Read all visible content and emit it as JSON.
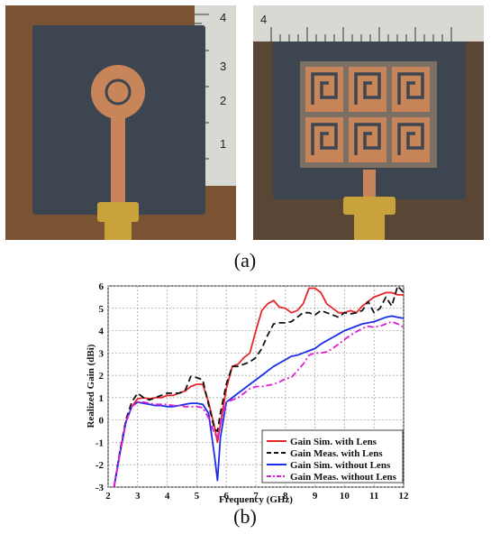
{
  "captions": {
    "a": "(a)",
    "b": "(b)"
  },
  "colors": {
    "board": "#3d4550",
    "copper": "#c8855a",
    "ruler": "#d9d9d4",
    "connector": "#c9a23c",
    "background_left": "#7a5234",
    "background_right": "#5a4635"
  },
  "ruler_labels": {
    "left": [
      "4",
      "3",
      "2",
      "1"
    ],
    "right": [
      "4"
    ]
  },
  "chart_data": {
    "type": "line",
    "xlabel": "Frequency (GHz)",
    "ylabel": "Realized Gain (dBi)",
    "xlim": [
      2,
      12
    ],
    "ylim": [
      -3,
      6
    ],
    "xticks": [
      2,
      3,
      4,
      5,
      6,
      7,
      8,
      9,
      10,
      11,
      12
    ],
    "yticks": [
      -3,
      -2,
      -1,
      0,
      1,
      2,
      3,
      4,
      5,
      6
    ],
    "grid": true,
    "legend_position": "bottom-right",
    "series": [
      {
        "name": "Gain Sim. with Lens",
        "color": "#e8262a",
        "dash": "solid",
        "x": [
          2.2,
          2.4,
          2.6,
          2.8,
          3.0,
          3.2,
          3.4,
          3.6,
          3.8,
          4.0,
          4.2,
          4.4,
          4.6,
          4.8,
          5.0,
          5.2,
          5.4,
          5.6,
          5.7,
          5.8,
          6.0,
          6.2,
          6.4,
          6.6,
          6.8,
          7.0,
          7.2,
          7.4,
          7.6,
          7.8,
          8.0,
          8.2,
          8.4,
          8.6,
          8.8,
          9.0,
          9.2,
          9.4,
          9.6,
          9.8,
          10.0,
          10.2,
          10.4,
          10.6,
          10.8,
          11.0,
          11.2,
          11.4,
          11.6,
          11.8,
          12.0
        ],
        "y": [
          -3.0,
          -1.5,
          -0.1,
          0.6,
          0.95,
          1.0,
          0.95,
          1.0,
          1.0,
          1.1,
          1.1,
          1.2,
          1.3,
          1.5,
          1.6,
          1.6,
          0.8,
          -0.3,
          -1.0,
          -0.2,
          1.4,
          2.4,
          2.5,
          2.8,
          3.0,
          4.0,
          4.9,
          5.2,
          5.35,
          5.05,
          5.0,
          4.8,
          4.9,
          5.2,
          5.9,
          5.9,
          5.7,
          5.2,
          5.0,
          4.8,
          4.8,
          4.9,
          4.8,
          5.1,
          5.3,
          5.5,
          5.6,
          5.7,
          5.7,
          5.6,
          5.6
        ]
      },
      {
        "name": "Gain Meas. with Lens",
        "color": "#111111",
        "dash": "dashed",
        "x": [
          2.2,
          2.4,
          2.6,
          2.8,
          3.0,
          3.2,
          3.4,
          3.6,
          3.8,
          4.0,
          4.2,
          4.4,
          4.6,
          4.8,
          5.0,
          5.2,
          5.4,
          5.6,
          5.7,
          5.8,
          6.0,
          6.2,
          6.4,
          6.6,
          6.8,
          7.0,
          7.2,
          7.4,
          7.6,
          7.8,
          8.0,
          8.2,
          8.4,
          8.6,
          8.8,
          9.0,
          9.2,
          9.4,
          9.6,
          9.8,
          10.0,
          10.2,
          10.4,
          10.6,
          10.8,
          11.0,
          11.2,
          11.4,
          11.6,
          11.8,
          12.0
        ],
        "y": [
          -3.0,
          -1.4,
          0.0,
          0.8,
          1.2,
          1.0,
          0.9,
          1.0,
          1.1,
          1.2,
          1.2,
          1.2,
          1.3,
          1.95,
          1.9,
          1.8,
          0.7,
          -0.4,
          -0.5,
          0.3,
          1.6,
          2.4,
          2.4,
          2.5,
          2.6,
          2.8,
          3.2,
          3.8,
          4.3,
          4.35,
          4.35,
          4.4,
          4.6,
          4.8,
          4.8,
          4.7,
          4.9,
          4.8,
          4.7,
          4.6,
          4.8,
          4.75,
          4.8,
          4.9,
          5.3,
          4.8,
          5.0,
          5.5,
          5.1,
          6.0,
          5.7
        ]
      },
      {
        "name": "Gain Sim. without Lens",
        "color": "#1a2ee8",
        "dash": "solid",
        "x": [
          2.2,
          2.4,
          2.6,
          2.8,
          3.0,
          3.2,
          3.4,
          3.6,
          3.8,
          4.0,
          4.2,
          4.4,
          4.6,
          4.8,
          5.0,
          5.2,
          5.4,
          5.6,
          5.7,
          5.8,
          6.0,
          6.2,
          6.4,
          6.6,
          6.8,
          7.0,
          7.2,
          7.4,
          7.6,
          7.8,
          8.0,
          8.2,
          8.4,
          8.6,
          8.8,
          9.0,
          9.2,
          9.4,
          9.6,
          9.8,
          10.0,
          10.2,
          10.4,
          10.6,
          10.8,
          11.0,
          11.2,
          11.4,
          11.6,
          11.8,
          12.0
        ],
        "y": [
          -3.0,
          -1.5,
          -0.1,
          0.6,
          0.8,
          0.75,
          0.7,
          0.65,
          0.65,
          0.6,
          0.6,
          0.65,
          0.7,
          0.75,
          0.75,
          0.7,
          0.3,
          -1.6,
          -2.7,
          -0.8,
          0.8,
          1.0,
          1.2,
          1.4,
          1.6,
          1.8,
          2.0,
          2.2,
          2.4,
          2.55,
          2.7,
          2.85,
          2.9,
          3.0,
          3.1,
          3.2,
          3.4,
          3.55,
          3.7,
          3.85,
          4.0,
          4.1,
          4.2,
          4.3,
          4.35,
          4.4,
          4.5,
          4.6,
          4.65,
          4.6,
          4.55
        ]
      },
      {
        "name": "Gain Meas. without Lens",
        "color": "#e01bd4",
        "dash": "dashdot",
        "x": [
          2.2,
          2.4,
          2.6,
          2.8,
          3.0,
          3.2,
          3.4,
          3.6,
          3.8,
          4.0,
          4.2,
          4.4,
          4.6,
          4.8,
          5.0,
          5.2,
          5.4,
          5.6,
          5.7,
          5.8,
          6.0,
          6.2,
          6.4,
          6.6,
          6.8,
          7.0,
          7.2,
          7.4,
          7.6,
          7.8,
          8.0,
          8.2,
          8.4,
          8.6,
          8.8,
          9.0,
          9.2,
          9.4,
          9.6,
          9.8,
          10.0,
          10.2,
          10.4,
          10.6,
          10.8,
          11.0,
          11.2,
          11.4,
          11.6,
          11.8,
          12.0
        ],
        "y": [
          -3.0,
          -1.5,
          -0.1,
          0.6,
          0.8,
          0.8,
          0.75,
          0.7,
          0.7,
          0.7,
          0.65,
          0.65,
          0.6,
          0.6,
          0.6,
          0.55,
          0.1,
          -0.6,
          -0.8,
          -0.2,
          0.8,
          0.9,
          1.0,
          1.2,
          1.4,
          1.5,
          1.5,
          1.55,
          1.6,
          1.7,
          1.85,
          1.9,
          2.2,
          2.5,
          2.9,
          3.0,
          3.0,
          3.05,
          3.2,
          3.4,
          3.6,
          3.8,
          3.95,
          4.1,
          4.2,
          4.15,
          4.2,
          4.3,
          4.4,
          4.3,
          4.15
        ]
      }
    ]
  }
}
